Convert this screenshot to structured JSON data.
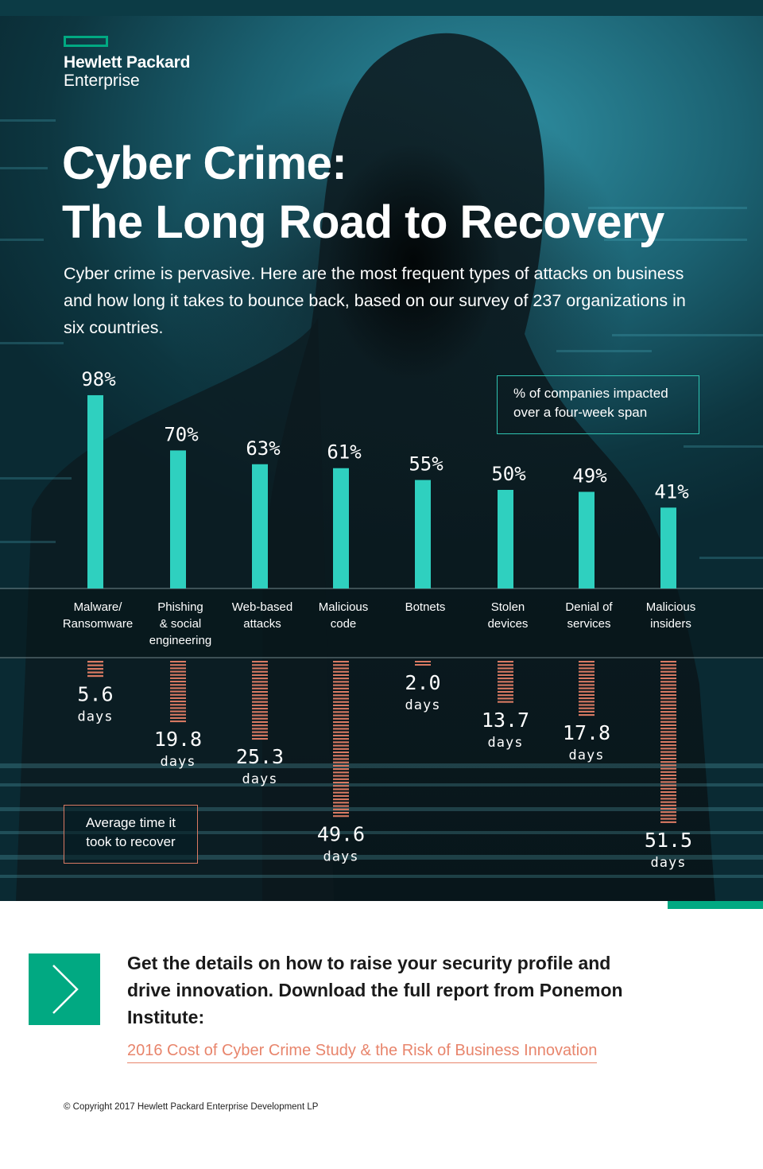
{
  "brand": {
    "name_line1": "Hewlett Packard",
    "name_line2": "Enterprise",
    "accent_color": "#01a982"
  },
  "header": {
    "title_line1": "Cyber Crime:",
    "title_line2": "The Long Road to Recovery",
    "intro": "Cyber crime is pervasive. Here are the most frequent types of attacks on business and how long it takes to bounce back, based on our survey of 237 organizations in six countries."
  },
  "chart_data": {
    "type": "bar",
    "categories": [
      [
        "Malware/",
        "Ransomware"
      ],
      [
        "Phishing",
        "& social",
        "engineering"
      ],
      [
        "Web-based",
        "attacks"
      ],
      [
        "Malicious",
        "code"
      ],
      [
        "Botnets"
      ],
      [
        "Stolen",
        "devices"
      ],
      [
        "Denial of",
        "services"
      ],
      [
        "Malicious",
        "insiders"
      ]
    ],
    "series": [
      {
        "name": "% of companies impacted over a four-week span",
        "values": [
          98,
          70,
          63,
          61,
          55,
          50,
          49,
          41
        ],
        "labels": [
          "98%",
          "70%",
          "63%",
          "61%",
          "55%",
          "50%",
          "49%",
          "41%"
        ],
        "color": "#2fd0bf"
      },
      {
        "name": "Average time it took to recover",
        "values": [
          5.6,
          19.8,
          25.3,
          49.6,
          2.0,
          13.7,
          17.8,
          51.5
        ],
        "labels": [
          "5.6",
          "19.8",
          "25.3",
          "49.6",
          "2.0",
          "13.7",
          "17.8",
          "51.5"
        ],
        "unit": "days",
        "color": "#d97a63"
      }
    ],
    "legend": {
      "impact_line1": "% of companies impacted",
      "impact_line2": "over a four-week span",
      "recover_line1": "Average time it",
      "recover_line2": "took to recover"
    }
  },
  "cta": {
    "text": "Get the details on how to raise your security profile and drive innovation. Download the full report from Ponemon Institute:",
    "link_label": "2016 Cost of Cyber Crime Study & the Risk of Business Innovation",
    "arrow_icon": "chevron-right-icon"
  },
  "footer": {
    "copyright": "© Copyright 2017 Hewlett Packard Enterprise Development LP"
  }
}
